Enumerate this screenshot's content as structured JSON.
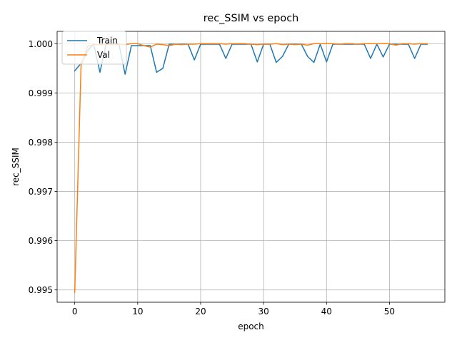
{
  "chart_data": {
    "type": "line",
    "title": "rec_SSIM vs epoch",
    "xlabel": "epoch",
    "ylabel": "rec_SSIM",
    "xlim": [
      -2.8,
      58.8
    ],
    "ylim": [
      0.99475,
      1.00025
    ],
    "xticks": [
      0,
      10,
      20,
      30,
      40,
      50
    ],
    "yticks": [
      0.995,
      0.996,
      0.997,
      0.998,
      0.999,
      1.0
    ],
    "ytick_labels": [
      "0.995",
      "0.996",
      "0.997",
      "0.998",
      "0.999",
      "1.000"
    ],
    "grid": true,
    "legend_position": "upper left",
    "series": [
      {
        "name": "Train",
        "color": "#1f77b4",
        "x": [
          0,
          1,
          2,
          3,
          4,
          5,
          6,
          7,
          8,
          9,
          10,
          11,
          12,
          13,
          14,
          15,
          16,
          17,
          18,
          19,
          20,
          21,
          22,
          23,
          24,
          25,
          26,
          27,
          28,
          29,
          30,
          31,
          32,
          33,
          34,
          35,
          36,
          37,
          38,
          39,
          40,
          41,
          42,
          43,
          44,
          45,
          46,
          47,
          48,
          49,
          50,
          51,
          52,
          53,
          54,
          55,
          56
        ],
        "values": [
          0.99945,
          0.9996,
          0.99985,
          1.0,
          0.99942,
          1.0,
          1.0,
          1.0,
          0.99938,
          0.99996,
          0.99996,
          0.99996,
          0.99996,
          0.99942,
          0.9995,
          0.99999,
          0.99999,
          0.99999,
          0.99999,
          0.99967,
          0.99999,
          0.99999,
          0.99999,
          0.99999,
          0.9997,
          0.99999,
          0.99999,
          0.99999,
          0.99999,
          0.99963,
          0.99999,
          0.99999,
          0.99962,
          0.99974,
          0.99999,
          0.99999,
          0.99999,
          0.99974,
          0.99962,
          0.99999,
          0.99963,
          0.99999,
          0.99999,
          0.99999,
          0.99999,
          0.99999,
          0.99999,
          0.9997,
          0.99999,
          0.99973,
          0.99999,
          0.99999,
          0.99999,
          0.99999,
          0.9997,
          0.99999,
          0.99999
        ]
      },
      {
        "name": "Val",
        "color": "#ff7f0e",
        "x": [
          0,
          1,
          2,
          3,
          4,
          5,
          6,
          7,
          8,
          9,
          10,
          11,
          12,
          13,
          14,
          15,
          16,
          17,
          18,
          19,
          20,
          21,
          22,
          23,
          24,
          25,
          26,
          27,
          28,
          29,
          30,
          31,
          32,
          33,
          34,
          35,
          36,
          37,
          38,
          39,
          40,
          41,
          42,
          43,
          44,
          45,
          46,
          47,
          48,
          49,
          50,
          51,
          52,
          53,
          54,
          55,
          56
        ],
        "values": [
          0.99495,
          0.99955,
          0.99995,
          0.99998,
          0.99998,
          0.99998,
          0.99998,
          0.99998,
          0.99998,
          1.0,
          1.0,
          0.99996,
          0.99993,
          0.99999,
          0.99998,
          0.99996,
          0.99999,
          0.99998,
          0.99999,
          0.99999,
          1.0,
          1.0,
          1.0,
          1.0,
          0.99999,
          1.0,
          1.0,
          1.0,
          0.99999,
          0.99998,
          0.99999,
          0.99999,
          1.0,
          0.99998,
          0.99999,
          0.99998,
          0.99999,
          0.99997,
          1.0,
          1.0,
          1.0,
          1.0,
          0.99999,
          1.0,
          1.0,
          0.99999,
          1.0,
          1.0,
          1.0,
          1.0,
          1.0,
          0.99997,
          1.0,
          1.0,
          0.99999,
          1.0,
          1.0
        ]
      }
    ]
  }
}
